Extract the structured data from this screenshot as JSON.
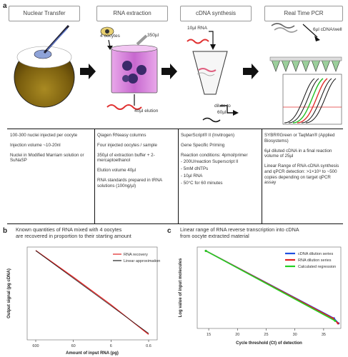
{
  "panel_a": {
    "letter": "a",
    "headers": [
      "Nuclear Transfer",
      "RNA extraction",
      "cDNA synthesis",
      "Real Time PCR"
    ],
    "illustration_labels": {
      "oocytes": "4 oocytes",
      "vol_350": "350µl",
      "elution": "40µl elution",
      "rna_10": "10µl RNA",
      "dilute": "dilute to",
      "dilute_vol": "60µl",
      "cdna_well": "6µl cDNA/well"
    },
    "columns": [
      [
        "100-300 nuclei injected per oocyte",
        "Injection volume ~10-20nl",
        "Nuclei in Modified Marriam solution or SuNaSP"
      ],
      [
        "Qiagen RNeasy columns",
        "Four injected oocytes / sample",
        "350µl of extraction buffer + 2-mercaptoethanol",
        "Elution volume 40µl",
        "RNA standards prepared in tRNA solutions (100ng/µl)"
      ],
      [
        "SuperScript® II (Invitrogen)",
        "Gene Specific Priming",
        "Reaction conditions: 4pmol/primer",
        "- 200U/reaction Superscript II",
        "- 5mM dNTPs",
        "- 10µl RNA",
        "- 50°C for 60 minutes"
      ],
      [
        "SYBR®Green or TaqMan® (Applied Biosystems)",
        "6µl diluted cDNA in a final reaction volume of 25µl",
        "Linear Range of RNA-cDNA synthesis and qPCR detection: >1×10⁸ to ~500 copies depending on target qPCR assay"
      ]
    ]
  },
  "panel_b": {
    "letter": "b",
    "title_line1": "Known quantities of RNA mixed with 4 oocytes",
    "title_line2": "are recovered in proportion to their starting amount"
  },
  "panel_c": {
    "letter": "c",
    "title_line1": "Linear range of RNA reverse transcription into cDNA",
    "title_line2": "from oocyte extracted material"
  },
  "chart_data": [
    {
      "type": "line",
      "ylabel": "Output signal (pg cDNA)",
      "xlabel": "Amount of input RNA (pg)",
      "x_ticks": [
        "600",
        "60",
        "6",
        "0.6"
      ],
      "x_log": true,
      "x_reversed": true,
      "series": [
        {
          "name": "RNA recovery",
          "color": "#e02020",
          "x": [
            600,
            60,
            6,
            0.6
          ],
          "y": [
            600,
            65,
            6.5,
            0.55
          ]
        },
        {
          "name": "Linear approximation",
          "color": "#222222",
          "x": [
            600,
            0.6
          ],
          "y": [
            590,
            0.6
          ]
        }
      ],
      "legend": "top-right"
    },
    {
      "type": "line",
      "ylabel": "Log value of input molecules",
      "xlabel": "Cycle threshold (Ct) of detection",
      "x_ticks": [
        "15",
        "20",
        "25",
        "30",
        "35"
      ],
      "xlim": [
        13,
        38
      ],
      "series": [
        {
          "name": "cDNA dilution series",
          "color": "#1f4fe0",
          "x": [
            14.5,
            36.8,
            37.6
          ],
          "y": [
            8.1,
            2.8,
            2.4
          ]
        },
        {
          "name": "RNA dilution series",
          "color": "#e02020",
          "x": [
            14.5,
            36.6,
            37.5
          ],
          "y": [
            8.1,
            2.8,
            2.4
          ]
        },
        {
          "name": "Calculated regression",
          "color": "#22d022",
          "x": [
            14.5,
            37.0
          ],
          "y": [
            8.1,
            2.6
          ]
        }
      ],
      "legend": "top-right"
    }
  ]
}
